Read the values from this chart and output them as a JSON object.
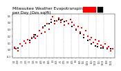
{
  "title": "Milwaukee Weather Evapotranspiration\nper Day (Ozs sq/ft)",
  "title_fontsize": 4.2,
  "xlim": [
    0,
    53
  ],
  "ylim": [
    -0.12,
    0.52
  ],
  "yticks": [
    -0.1,
    0.0,
    0.1,
    0.2,
    0.3,
    0.4,
    0.5
  ],
  "ytick_labels": [
    "-0.1",
    "0.0",
    "0.1",
    "0.2",
    "0.3",
    "0.4",
    "0.5"
  ],
  "background_color": "#ffffff",
  "grid_color": "#aaaaaa",
  "red_x": [
    1,
    2,
    3,
    4,
    5,
    6,
    7,
    8,
    9,
    10,
    11,
    12,
    13,
    14,
    15,
    16,
    17,
    18,
    19,
    20,
    21,
    22,
    23,
    24,
    25,
    26,
    27,
    28,
    29,
    30,
    31,
    32,
    33,
    34,
    35,
    36,
    37,
    38,
    39,
    40,
    41,
    42,
    43,
    44,
    45,
    46,
    47,
    48,
    49,
    50,
    51,
    52
  ],
  "red_y": [
    0.03,
    0.01,
    -0.02,
    0.08,
    0.05,
    0.12,
    0.09,
    0.14,
    0.1,
    0.18,
    0.22,
    0.16,
    0.2,
    0.28,
    0.24,
    0.32,
    0.26,
    0.38,
    0.3,
    0.44,
    0.48,
    0.38,
    0.42,
    0.46,
    0.4,
    0.44,
    0.36,
    0.42,
    0.38,
    0.44,
    0.4,
    0.36,
    0.3,
    0.34,
    0.26,
    0.32,
    0.22,
    0.28,
    0.2,
    0.14,
    0.18,
    0.1,
    0.14,
    0.08,
    0.12,
    0.06,
    0.04,
    0.08,
    0.02,
    0.04,
    -0.02,
    0.01
  ],
  "black_x": [
    1,
    2,
    3,
    5,
    7,
    9,
    10,
    11,
    12,
    14,
    16,
    17,
    19,
    20,
    22,
    24,
    25,
    27,
    29,
    31,
    33,
    35,
    37,
    39,
    41,
    43,
    44,
    46,
    47,
    49,
    51
  ],
  "black_y": [
    0.02,
    0.01,
    0.02,
    0.05,
    0.09,
    0.13,
    0.17,
    0.19,
    0.22,
    0.28,
    0.33,
    0.35,
    0.38,
    0.4,
    0.42,
    0.44,
    0.43,
    0.41,
    0.38,
    0.34,
    0.29,
    0.24,
    0.18,
    0.13,
    0.08,
    0.05,
    0.04,
    0.02,
    0.02,
    0.01,
    0.01
  ],
  "vline_positions": [
    4.5,
    8.5,
    13.5,
    17.5,
    21.5,
    26.5,
    30.5,
    34.5,
    39.5,
    43.5,
    47.5
  ],
  "xtick_positions": [
    1,
    3,
    5,
    7,
    9,
    11,
    13,
    15,
    17,
    19,
    21,
    23,
    25,
    27,
    29,
    31,
    33,
    35,
    37,
    39,
    41,
    43,
    45,
    47,
    49,
    51
  ],
  "xtick_labels": [
    "1/4",
    "1/18",
    "2/1",
    "2/15",
    "3/1",
    "3/15",
    "4/1",
    "4/15",
    "5/1",
    "5/15",
    "6/1",
    "6/15",
    "7/1",
    "7/15",
    "8/1",
    "8/15",
    "9/1",
    "9/15",
    "10/1",
    "10/15",
    "11/1",
    "11/15",
    "12/1",
    "12/15",
    "12/8",
    "12/22"
  ]
}
